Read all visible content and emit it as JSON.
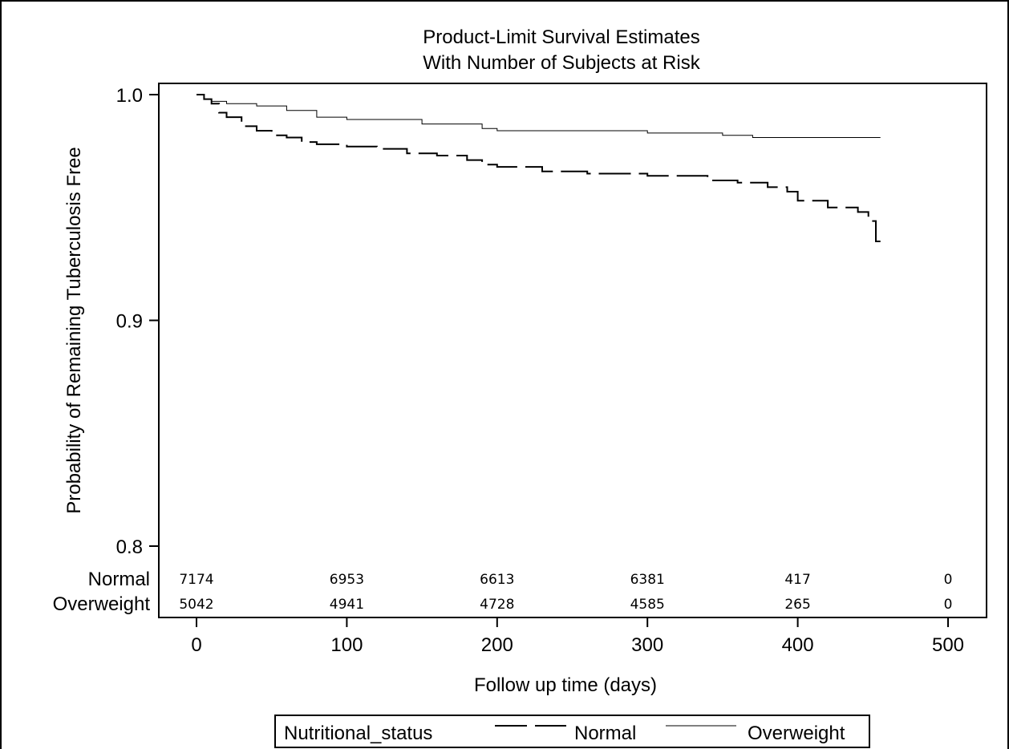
{
  "chart_data": {
    "type": "line",
    "title_line1": "Product-Limit Survival Estimates",
    "title_line2": "With Number of Subjects at Risk",
    "xlabel": "Follow up time (days)",
    "ylabel": "Probability of Remaining Tuberculosis Free",
    "xlim": [
      0,
      500
    ],
    "ylim": [
      0.8,
      1.0
    ],
    "x_ticks": [
      "0",
      "100",
      "200",
      "300",
      "400",
      "500"
    ],
    "y_ticks": [
      "0.8",
      "0.9",
      "1.0"
    ],
    "grid": false,
    "legend": {
      "title": "Nutritional_status",
      "placement": "bottom",
      "entries": [
        "Normal",
        "Overweight"
      ]
    },
    "series": [
      {
        "name": "Normal",
        "style": "dashed",
        "x": [
          0,
          5,
          10,
          15,
          20,
          30,
          40,
          50,
          60,
          70,
          80,
          90,
          100,
          120,
          140,
          160,
          180,
          190,
          200,
          230,
          260,
          300,
          340,
          360,
          380,
          393,
          400,
          410,
          420,
          430,
          440,
          447,
          450,
          452,
          455
        ],
        "y": [
          1.0,
          0.998,
          0.996,
          0.992,
          0.99,
          0.986,
          0.984,
          0.982,
          0.981,
          0.979,
          0.978,
          0.978,
          0.977,
          0.976,
          0.974,
          0.973,
          0.971,
          0.969,
          0.968,
          0.966,
          0.965,
          0.964,
          0.962,
          0.961,
          0.959,
          0.957,
          0.953,
          0.953,
          0.95,
          0.95,
          0.948,
          0.944,
          0.944,
          0.935,
          0.935
        ]
      },
      {
        "name": "Overweight",
        "style": "solid",
        "x": [
          0,
          5,
          10,
          20,
          40,
          60,
          80,
          100,
          150,
          190,
          200,
          250,
          300,
          350,
          370,
          400,
          455
        ],
        "y": [
          1.0,
          0.998,
          0.997,
          0.996,
          0.995,
          0.993,
          0.99,
          0.989,
          0.987,
          0.985,
          0.984,
          0.984,
          0.983,
          0.982,
          0.981,
          0.981,
          0.981
        ]
      }
    ],
    "at_risk": {
      "groups": [
        {
          "name": "Normal",
          "counts": [
            "7174",
            "6953",
            "6613",
            "6381",
            "417",
            "0"
          ]
        },
        {
          "name": "Overweight",
          "counts": [
            "5042",
            "4941",
            "4728",
            "4585",
            "265",
            "0"
          ]
        }
      ]
    }
  }
}
